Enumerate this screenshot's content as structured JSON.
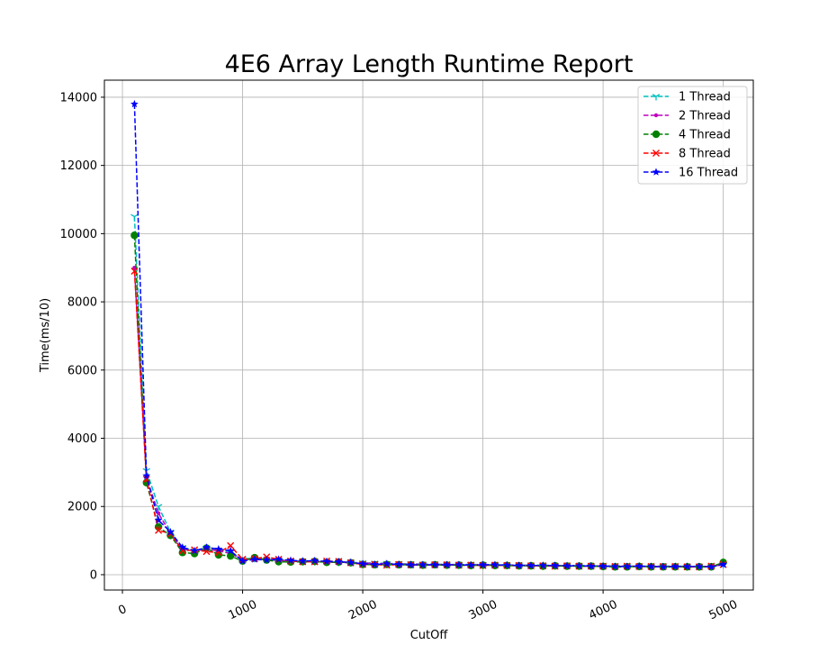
{
  "chart_data": {
    "type": "line",
    "title": "4E6 Array Length Runtime Report",
    "xlabel": "CutOff",
    "ylabel": "Time(ms/10)",
    "xlim": [
      -150,
      5250
    ],
    "ylim": [
      -450,
      14500
    ],
    "xticks": [
      0,
      1000,
      2000,
      3000,
      4000,
      5000
    ],
    "yticks": [
      0,
      2000,
      4000,
      6000,
      8000,
      10000,
      12000,
      14000
    ],
    "grid": true,
    "legend_position": "top-right",
    "x": [
      100,
      200,
      300,
      400,
      500,
      600,
      700,
      800,
      900,
      1000,
      1100,
      1200,
      1300,
      1400,
      1500,
      1600,
      1700,
      1800,
      1900,
      2000,
      2100,
      2200,
      2300,
      2400,
      2500,
      2600,
      2700,
      2800,
      2900,
      3000,
      3100,
      3200,
      3300,
      3400,
      3500,
      3600,
      3700,
      3800,
      3900,
      4000,
      4100,
      4200,
      4300,
      4400,
      4500,
      4600,
      4700,
      4800,
      4900,
      5000
    ],
    "series": [
      {
        "name": "1 Thread",
        "color": "#00bfbf",
        "marker": "tri_down",
        "values": [
          10500,
          3050,
          2000,
          1250,
          800,
          700,
          780,
          720,
          650,
          470,
          480,
          450,
          430,
          410,
          400,
          390,
          380,
          370,
          360,
          350,
          340,
          330,
          320,
          320,
          310,
          310,
          300,
          300,
          300,
          300,
          290,
          290,
          280,
          280,
          280,
          270,
          270,
          270,
          260,
          260,
          260,
          250,
          250,
          250,
          250,
          250,
          250,
          240,
          240,
          300
        ]
      },
      {
        "name": "2 Thread",
        "color": "#bf00bf",
        "marker": "point",
        "values": [
          9000,
          2850,
          1800,
          1200,
          750,
          700,
          750,
          700,
          620,
          450,
          460,
          440,
          420,
          400,
          390,
          380,
          370,
          360,
          350,
          340,
          330,
          320,
          310,
          310,
          300,
          300,
          300,
          290,
          290,
          290,
          280,
          280,
          280,
          270,
          270,
          270,
          260,
          260,
          260,
          250,
          250,
          250,
          250,
          240,
          240,
          240,
          240,
          240,
          240,
          300
        ]
      },
      {
        "name": "4 Thread",
        "color": "#008000",
        "marker": "circle",
        "values": [
          9950,
          2700,
          1400,
          1150,
          650,
          620,
          780,
          580,
          550,
          400,
          500,
          430,
          380,
          370,
          380,
          390,
          360,
          370,
          350,
          300,
          290,
          300,
          290,
          290,
          280,
          290,
          280,
          280,
          270,
          280,
          270,
          270,
          260,
          260,
          250,
          260,
          250,
          250,
          250,
          240,
          230,
          230,
          240,
          230,
          230,
          230,
          230,
          230,
          230,
          360
        ]
      },
      {
        "name": "8 Thread",
        "color": "#ff0000",
        "marker": "x",
        "values": [
          8900,
          2800,
          1300,
          1200,
          700,
          730,
          680,
          650,
          850,
          450,
          470,
          520,
          450,
          400,
          380,
          380,
          400,
          390,
          350,
          300,
          300,
          280,
          300,
          290,
          280,
          290,
          290,
          280,
          280,
          270,
          280,
          270,
          270,
          260,
          260,
          250,
          260,
          250,
          250,
          250,
          240,
          250,
          240,
          240,
          240,
          240,
          230,
          230,
          250,
          300
        ]
      },
      {
        "name": "16 Thread",
        "color": "#0000ff",
        "marker": "star",
        "values": [
          13800,
          2900,
          1600,
          1250,
          800,
          700,
          800,
          750,
          700,
          400,
          450,
          430,
          450,
          420,
          400,
          410,
          390,
          380,
          360,
          320,
          300,
          320,
          300,
          290,
          290,
          290,
          290,
          290,
          280,
          290,
          290,
          280,
          270,
          270,
          270,
          270,
          260,
          260,
          250,
          250,
          240,
          240,
          250,
          240,
          230,
          240,
          240,
          240,
          230,
          300
        ]
      }
    ]
  }
}
